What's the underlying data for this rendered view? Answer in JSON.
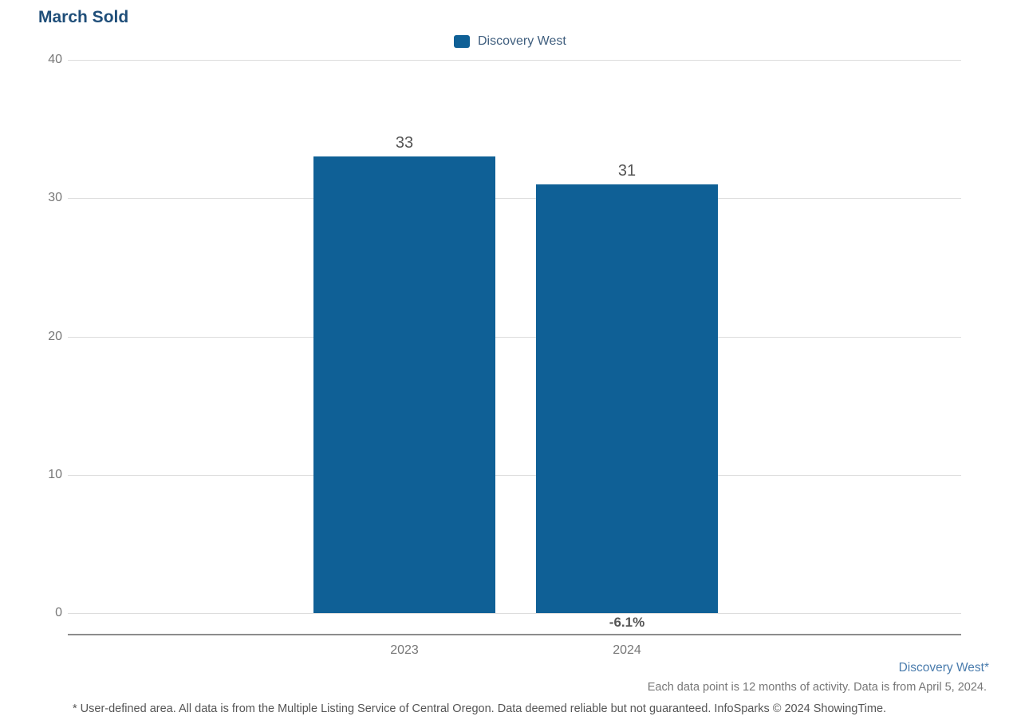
{
  "title": "March Sold",
  "legend": {
    "label": "Discovery West"
  },
  "colors": {
    "bar": "#0F6096",
    "title": "#1F4E79",
    "legend_text": "#3F5E7E",
    "tick": "#777777",
    "value_label": "#555555",
    "gridline": "#dddddd",
    "axis_line": "#8c8c8c",
    "series_link": "#4A7CAD",
    "footnote": "#555555"
  },
  "chart_data": {
    "type": "bar",
    "title": "March Sold",
    "categories": [
      "2023",
      "2024"
    ],
    "series": [
      {
        "name": "Discovery West",
        "values": [
          33,
          31
        ]
      }
    ],
    "value_labels": [
      "33",
      "31"
    ],
    "change_labels": [
      "",
      "-6.1%"
    ],
    "xlabel": "",
    "ylabel": "",
    "ylim": [
      0,
      40
    ],
    "yticks": [
      0,
      10,
      20,
      30,
      40
    ],
    "grid": true,
    "legend_position": "top-center"
  },
  "footer": {
    "series_label": "Discovery West*",
    "data_note": "Each data point is 12 months of activity. Data is from April 5, 2024.",
    "footnote": "* User-defined area. All data is from the Multiple Listing Service of Central Oregon. Data deemed reliable but not guaranteed. InfoSparks © 2024 ShowingTime."
  }
}
